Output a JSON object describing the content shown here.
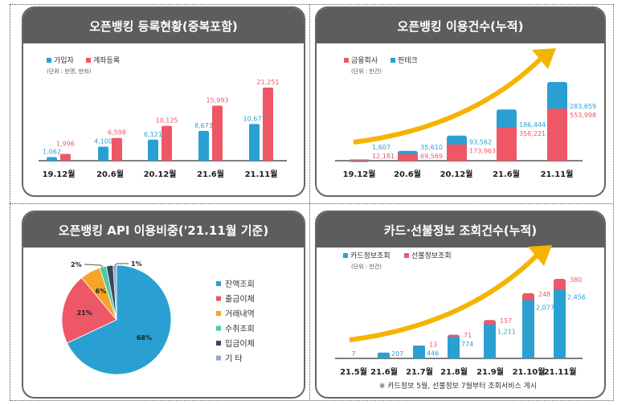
{
  "colors": {
    "blue": "#2aa0d2",
    "red": "#ee5866",
    "orange": "#f5a42a",
    "teal": "#4ec9a8",
    "navy": "#34485e",
    "lavender": "#93a6cf",
    "arrow": "#f5b400",
    "header": "#5d5d5d"
  },
  "chart_data": [
    {
      "type": "bar",
      "title": "오픈뱅킹 등록현황(중복포함)",
      "unit": "(단위 : 만명, 만좌)",
      "categories": [
        "19.12월",
        "20.6월",
        "20.12월",
        "21.6월",
        "21.11월"
      ],
      "series": [
        {
          "name": "가입자",
          "values": [
            1062,
            4100,
            6121,
            8673,
            10677
          ],
          "labels": [
            "1,062",
            "4,100",
            "6,121",
            "8,673",
            "10,677"
          ]
        },
        {
          "name": "계좌등록",
          "values": [
            1996,
            6598,
            10125,
            15993,
            21251
          ],
          "labels": [
            "1,996",
            "6,598",
            "10,125",
            "15,993",
            "21,251"
          ]
        }
      ]
    },
    {
      "type": "bar",
      "stacked": true,
      "title": "오픈뱅킹 이용건수(누적)",
      "unit": "(단위 : 만건)",
      "categories": [
        "19.12월",
        "20.6월",
        "20.12월",
        "21.6월",
        "21.11월"
      ],
      "series": [
        {
          "name": "금융회사",
          "values": [
            12181,
            69569,
            173963,
            358221,
            553998
          ],
          "labels": [
            "12,181",
            "69,569",
            "173,963",
            "358,221",
            "553,998"
          ]
        },
        {
          "name": "핀테크",
          "values": [
            1607,
            35610,
            93562,
            186444,
            283659
          ],
          "labels": [
            "1,607",
            "35,610",
            "93,562",
            "186,444",
            "283,659"
          ]
        }
      ]
    },
    {
      "type": "pie",
      "title": "오픈뱅킹 API 이용비중('21.11월 기준)",
      "categories": [
        "잔액조회",
        "출금이체",
        "거래내역",
        "수취조회",
        "입금이체",
        "기      타"
      ],
      "values": [
        68,
        21,
        6,
        2,
        2,
        1
      ],
      "labels": [
        "68%",
        "21%",
        "6%",
        "2%",
        "",
        "1%"
      ]
    },
    {
      "type": "bar",
      "stacked": true,
      "title": "카드·선불정보 조회건수(누적)",
      "unit": "(단위 : 만건)",
      "note": "※ 카드정보 5월, 선불정보 7월부터 조회서비스 게시",
      "categories": [
        "21.5월",
        "21.6월",
        "21.7월",
        "21.8월",
        "21.9월",
        "21.10월",
        "21.11월"
      ],
      "series": [
        {
          "name": "카드정보조회",
          "values": [
            7,
            207,
            446,
            774,
            1211,
            2077,
            2456
          ],
          "labels": [
            "7",
            "207",
            "446",
            "774",
            "1,211",
            "2,077",
            "2,456"
          ]
        },
        {
          "name": "선불정보조회",
          "values": [
            0,
            0,
            13,
            71,
            157,
            248,
            380
          ],
          "labels": [
            "",
            "",
            "13",
            "71",
            "157",
            "248",
            "380"
          ]
        }
      ]
    }
  ]
}
